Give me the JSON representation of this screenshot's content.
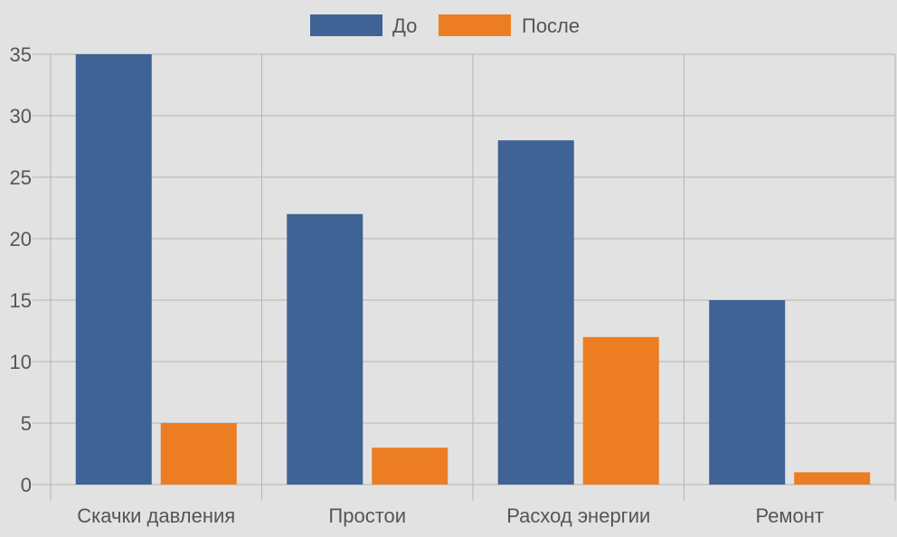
{
  "chart_data": {
    "type": "bar",
    "categories": [
      "Скачки давления",
      "Простои",
      "Расход энергии",
      "Ремонт"
    ],
    "series": [
      {
        "name": "До",
        "values": [
          35,
          22,
          28,
          15
        ],
        "color": "#3e6394"
      },
      {
        "name": "После",
        "values": [
          5,
          3,
          12,
          1
        ],
        "color": "#ec7d23"
      }
    ],
    "ylim": [
      0,
      35
    ],
    "yticks": [
      0,
      5,
      10,
      15,
      20,
      25,
      30,
      35
    ],
    "grid": true,
    "legend_position": "top-center"
  },
  "colors": {
    "background": "#e2e2e2",
    "grid": "#b4b4b4",
    "text": "#555555"
  }
}
